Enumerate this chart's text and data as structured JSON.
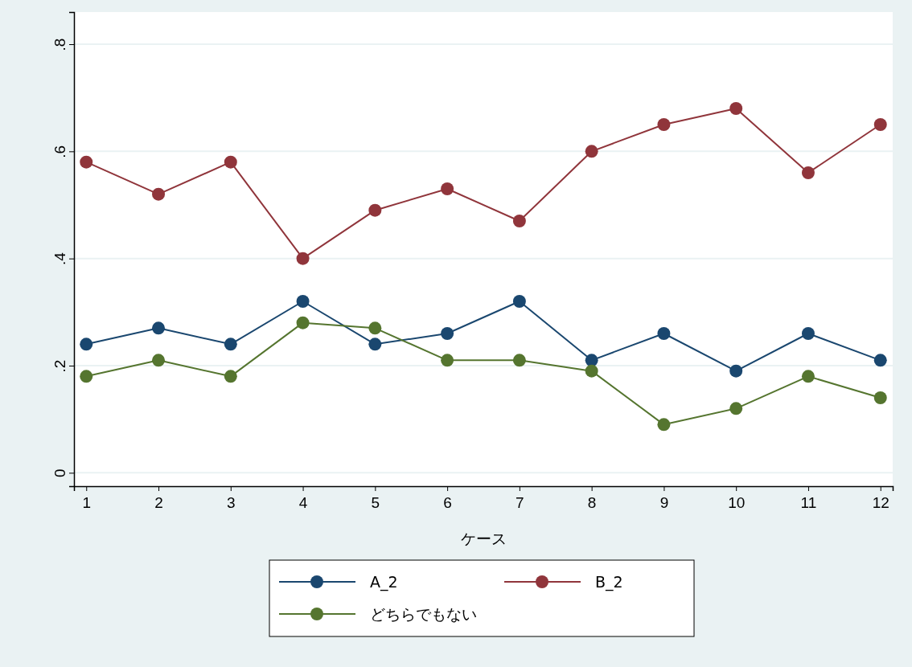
{
  "chart_data": {
    "type": "line",
    "xlabel": "ケース",
    "x": [
      1,
      2,
      3,
      4,
      5,
      6,
      7,
      8,
      9,
      10,
      11,
      12
    ],
    "xlim": [
      0.83,
      12.17
    ],
    "xticks": [
      1,
      2,
      3,
      4,
      5,
      6,
      7,
      8,
      9,
      10,
      11,
      12
    ],
    "ylim": [
      -0.025,
      0.86
    ],
    "yticks": [
      0,
      {
        "value": 0.2,
        "label": ".2"
      },
      {
        "value": 0.4,
        "label": ".4"
      },
      {
        "value": 0.6,
        "label": ".6"
      },
      {
        "value": 0.8,
        "label": ".8"
      }
    ],
    "grid": "y",
    "legend": "bottom",
    "marker": "circle",
    "line_style": "solid",
    "series": [
      {
        "name": "A_2",
        "color": "#1a476f",
        "values": [
          0.24,
          0.27,
          0.24,
          0.32,
          0.24,
          0.26,
          0.32,
          0.21,
          0.26,
          0.19,
          0.26,
          0.21
        ]
      },
      {
        "name": "B_2",
        "color": "#90353b",
        "values": [
          0.58,
          0.52,
          0.58,
          0.4,
          0.49,
          0.53,
          0.47,
          0.6,
          0.65,
          0.68,
          0.56,
          0.65
        ]
      },
      {
        "name": "どちらでもない",
        "color": "#55752f",
        "values": [
          0.18,
          0.21,
          0.18,
          0.28,
          0.27,
          0.21,
          0.21,
          0.19,
          0.09,
          0.12,
          0.18,
          0.14
        ]
      }
    ]
  }
}
